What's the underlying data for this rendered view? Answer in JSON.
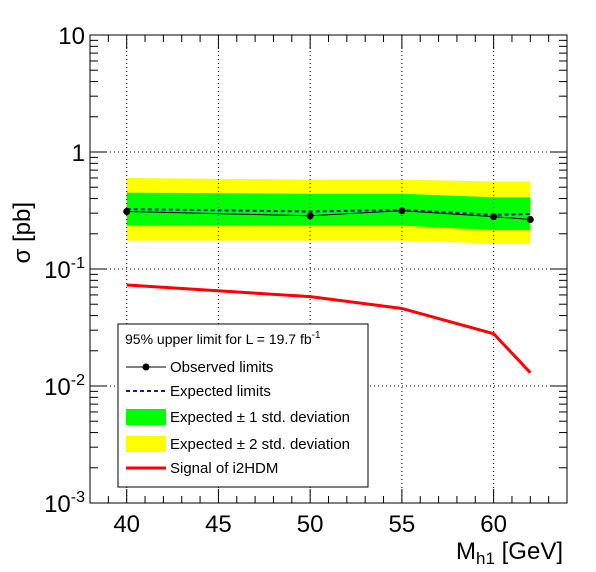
{
  "chart_data": {
    "type": "line",
    "title": "",
    "xlabel": {
      "main": "M",
      "sub": "h1",
      "unit": " [GeV]"
    },
    "ylabel": "σ [pb]",
    "xlim": [
      38,
      64
    ],
    "ylim": [
      0.001,
      10
    ],
    "yscale": "log",
    "grid": true,
    "legend_position": "bottom-left",
    "x_ticks": [
      "40",
      "45",
      "50",
      "55",
      "60"
    ],
    "y_ticks": [
      {
        "value": 10,
        "base": "10",
        "exp": ""
      },
      {
        "value": 1,
        "base": "1",
        "exp": ""
      },
      {
        "value": 0.1,
        "base": "10",
        "exp": "-1"
      },
      {
        "value": 0.01,
        "base": "10",
        "exp": "-2"
      },
      {
        "value": 0.001,
        "base": "10",
        "exp": "-3"
      }
    ],
    "legend": {
      "header": "95% upper limit for L = 19.7 fb",
      "header_sup": "-1",
      "items": [
        {
          "key": "observed",
          "label": "Observed limits"
        },
        {
          "key": "expected",
          "label": "Expected limits"
        },
        {
          "key": "band1",
          "label": "Expected ± 1 std. deviation"
        },
        {
          "key": "band2",
          "label": "Expected ± 2 std. deviation"
        },
        {
          "key": "signal",
          "label": "Signal of i2HDM"
        }
      ]
    },
    "colors": {
      "observed": "#000000",
      "expected": "#1a1ab3",
      "band1": "#00ff00",
      "band2": "#ffff00",
      "signal": "#ff0000",
      "grid": "#000000"
    },
    "x": [
      40,
      50,
      55,
      60,
      62
    ],
    "series": [
      {
        "key": "observed",
        "name": "Observed limits",
        "x": [
          40,
          50,
          55,
          60,
          62
        ],
        "values": [
          0.31,
          0.285,
          0.315,
          0.28,
          0.265
        ]
      },
      {
        "key": "expected",
        "name": "Expected limits",
        "x": [
          40,
          50,
          55,
          60,
          62
        ],
        "values": [
          0.325,
          0.31,
          0.32,
          0.29,
          0.295
        ]
      },
      {
        "key": "band1",
        "name": "Expected ± 1 std. deviation",
        "x": [
          40,
          50,
          55,
          60,
          62
        ],
        "lower": [
          0.235,
          0.235,
          0.235,
          0.215,
          0.215
        ],
        "upper": [
          0.45,
          0.44,
          0.44,
          0.41,
          0.41
        ]
      },
      {
        "key": "band2",
        "name": "Expected ± 2 std. deviation",
        "x": [
          40,
          50,
          55,
          60,
          62
        ],
        "lower": [
          0.175,
          0.175,
          0.175,
          0.165,
          0.165
        ],
        "upper": [
          0.6,
          0.58,
          0.58,
          0.56,
          0.56
        ]
      },
      {
        "key": "signal",
        "name": "Signal of i2HDM",
        "x": [
          40,
          50,
          55,
          60,
          62
        ],
        "values": [
          0.073,
          0.058,
          0.046,
          0.028,
          0.013
        ]
      }
    ]
  }
}
